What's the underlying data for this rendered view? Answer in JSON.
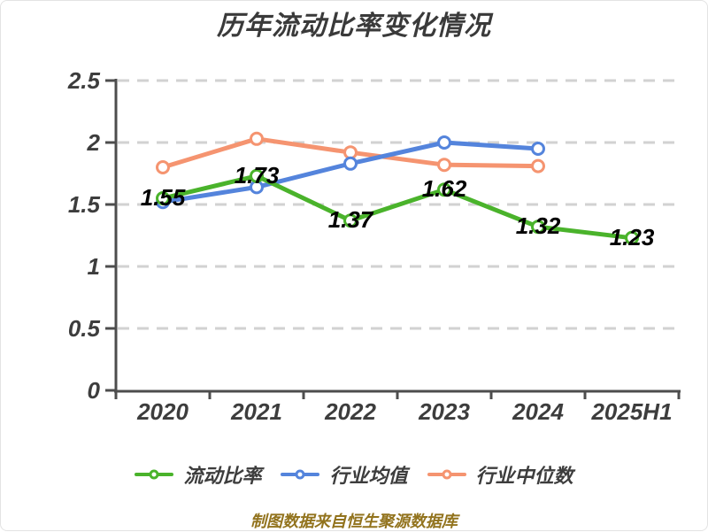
{
  "title": "历年流动比率变化情况",
  "footer": "制图数据来自恒生聚源数据库",
  "colors": {
    "background": "#ffffff",
    "title_text": "#3a3a3a",
    "axis": "#4d4d4d",
    "tick_text": "#3d3d3d",
    "gridline": "#d2d2d2",
    "data_label_text": "#000000",
    "legend_text": "#3d3d3d",
    "footer_text": "#92731d"
  },
  "chart_data": {
    "type": "line",
    "title": "历年流动比率变化情况",
    "categories": [
      "2020",
      "2021",
      "2022",
      "2023",
      "2024",
      "2025H1"
    ],
    "series": [
      {
        "name": "流动比率",
        "color": "#4ab32b",
        "values": [
          1.55,
          1.73,
          1.37,
          1.62,
          1.32,
          1.23
        ],
        "show_labels": true
      },
      {
        "name": "行业均值",
        "color": "#5484dc",
        "values": [
          1.52,
          1.64,
          1.83,
          2.0,
          1.95,
          null
        ],
        "show_labels": false
      },
      {
        "name": "行业中位数",
        "color": "#f59470",
        "values": [
          1.8,
          2.03,
          1.92,
          1.82,
          1.81,
          null
        ],
        "show_labels": false
      }
    ],
    "data_labels": [
      "1.55",
      "1.73",
      "1.37",
      "1.62",
      "1.32",
      "1.23"
    ],
    "xlabel": "",
    "ylabel": "",
    "ylim": [
      0,
      2.5
    ],
    "yticks": [
      0,
      0.5,
      1,
      1.5,
      2,
      2.5
    ],
    "ytick_labels": [
      "0",
      "0.5",
      "1",
      "1.5",
      "2",
      "2.5"
    ],
    "grid": true,
    "gridline_style": "dashed",
    "legend_position": "bottom",
    "marker": "hollow-circle"
  }
}
